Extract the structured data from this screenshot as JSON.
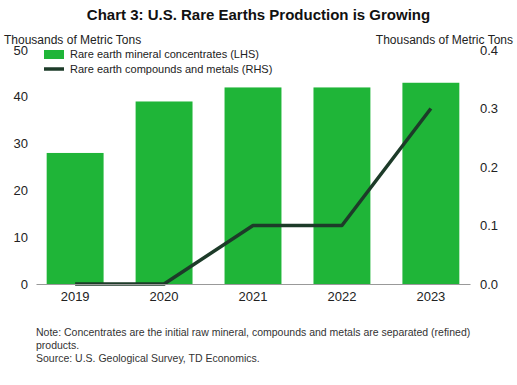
{
  "chart_data": {
    "type": "bar",
    "title": "Chart 3: U.S. Rare Earths Production is Growing",
    "y_label": "Thousands of Metric Tons",
    "y2_label": "Thousands of Metric Tons",
    "categories": [
      "2019",
      "2020",
      "2021",
      "2022",
      "2023"
    ],
    "series": [
      {
        "name": "Rare earth mineral concentrates (LHS)",
        "type": "bar",
        "color": "#1fb538",
        "values": [
          28,
          39,
          42,
          42,
          43
        ]
      },
      {
        "name": "Rare earth compounds and metals (RHS)",
        "type": "line",
        "color": "#1d3b29",
        "axis": "y2",
        "values": [
          0,
          0,
          0.1,
          0.1,
          0.3
        ]
      }
    ],
    "ylim": [
      0,
      50
    ],
    "yticks": [
      0,
      10,
      20,
      30,
      40,
      50
    ],
    "y2lim": [
      0,
      0.4
    ],
    "y2ticks": [
      {
        "value": 0,
        "label": "0.0"
      },
      0.1,
      0.2,
      0.3,
      0.4
    ],
    "legend": "upper left",
    "grid": false,
    "note": "Note: Concentrates are the initial raw mineral, compounds and metals are separated (refined) products.",
    "source": "Source: U.S. Geological Survey, TD Economics."
  }
}
